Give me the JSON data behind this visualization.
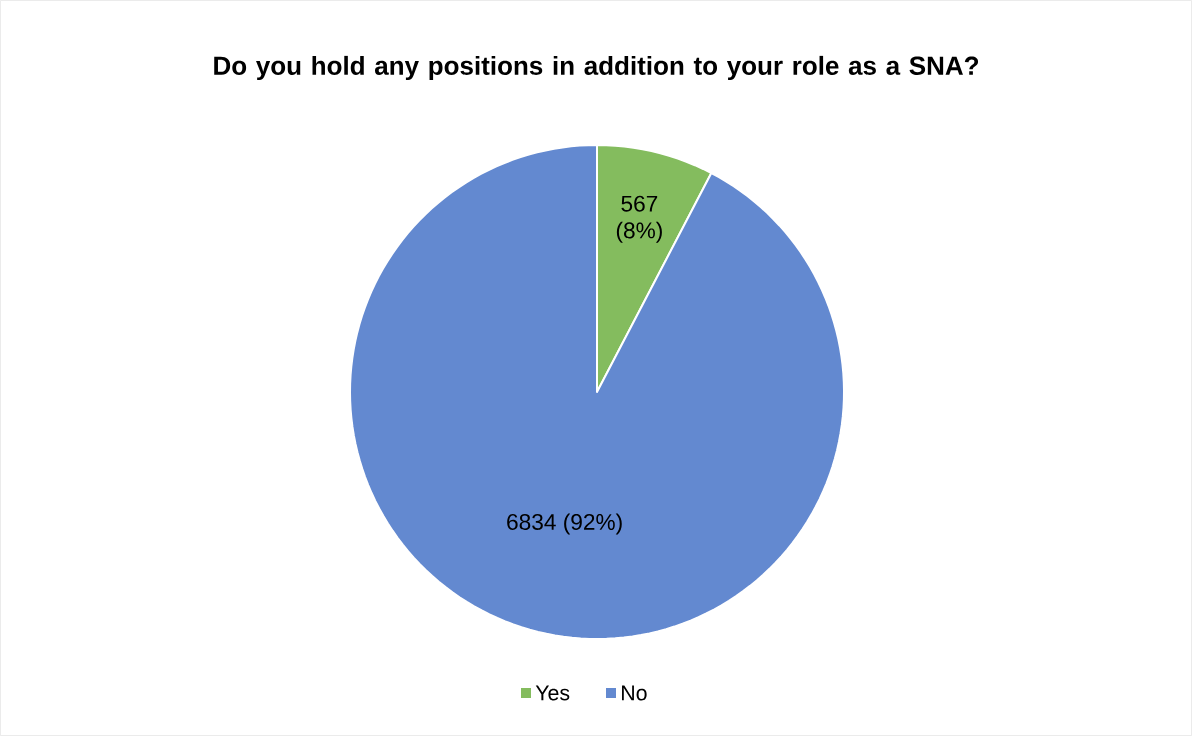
{
  "chart_data": {
    "type": "pie",
    "title": "Do you hold any positions in addition to your role as a SNA?",
    "categories": [
      "Yes",
      "No"
    ],
    "values": [
      567,
      6834
    ],
    "colors": [
      "#84bc5e",
      "#6389d0"
    ],
    "value_labels": [
      "567 (8%)",
      "6834 (92%)"
    ],
    "legend": "bottom"
  }
}
